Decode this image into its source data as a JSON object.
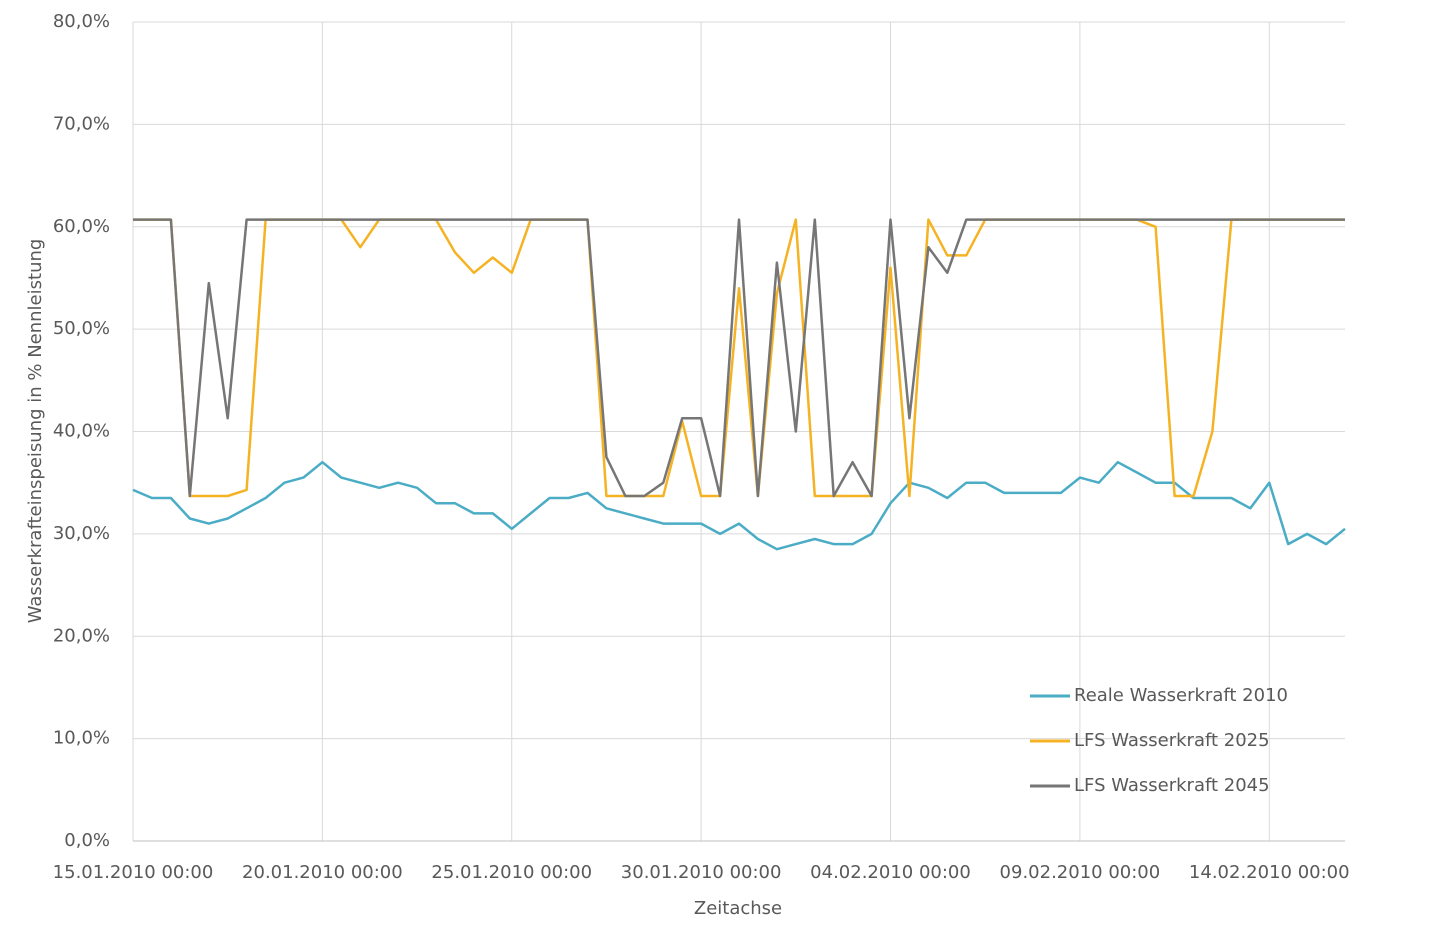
{
  "chart_data": {
    "type": "line",
    "x_label": "Zeitachse",
    "y_label": "Wasserkrafteinspeisung in % Nennleistung",
    "x": [
      "15.01.2010 00:00",
      "15.01.2010 12:00",
      "16.01.2010 00:00",
      "16.01.2010 12:00",
      "17.01.2010 00:00",
      "17.01.2010 12:00",
      "18.01.2010 00:00",
      "18.01.2010 12:00",
      "19.01.2010 00:00",
      "19.01.2010 12:00",
      "20.01.2010 00:00",
      "20.01.2010 12:00",
      "21.01.2010 00:00",
      "21.01.2010 12:00",
      "22.01.2010 00:00",
      "22.01.2010 12:00",
      "23.01.2010 00:00",
      "23.01.2010 12:00",
      "24.01.2010 00:00",
      "24.01.2010 12:00",
      "25.01.2010 00:00",
      "25.01.2010 12:00",
      "26.01.2010 00:00",
      "26.01.2010 12:00",
      "27.01.2010 00:00",
      "27.01.2010 12:00",
      "28.01.2010 00:00",
      "28.01.2010 12:00",
      "29.01.2010 00:00",
      "29.01.2010 12:00",
      "30.01.2010 00:00",
      "30.01.2010 12:00",
      "31.01.2010 00:00",
      "31.01.2010 12:00",
      "01.02.2010 00:00",
      "01.02.2010 12:00",
      "02.02.2010 00:00",
      "02.02.2010 12:00",
      "03.02.2010 00:00",
      "03.02.2010 12:00",
      "04.02.2010 00:00",
      "04.02.2010 12:00",
      "05.02.2010 00:00",
      "05.02.2010 12:00",
      "06.02.2010 00:00",
      "06.02.2010 12:00",
      "07.02.2010 00:00",
      "07.02.2010 12:00",
      "08.02.2010 00:00",
      "08.02.2010 12:00",
      "09.02.2010 00:00",
      "09.02.2010 12:00",
      "10.02.2010 00:00",
      "10.02.2010 12:00",
      "11.02.2010 00:00",
      "11.02.2010 12:00",
      "12.02.2010 00:00",
      "12.02.2010 12:00",
      "13.02.2010 00:00",
      "13.02.2010 12:00",
      "14.02.2010 00:00",
      "14.02.2010 12:00",
      "15.02.2010 00:00",
      "15.02.2010 12:00",
      "16.02.2010 00:00"
    ],
    "series": [
      {
        "name": "Reale Wasserkraft 2010",
        "color": "#4bacc6",
        "values": [
          34.3,
          33.5,
          33.5,
          31.5,
          31,
          31.5,
          32.5,
          33.5,
          35,
          35.5,
          37,
          35.5,
          35,
          34.5,
          35,
          34.5,
          33,
          33,
          32,
          32,
          30.5,
          32,
          33.5,
          33.5,
          34,
          32.5,
          32,
          31.5,
          31,
          31,
          31,
          30,
          31,
          29.5,
          28.5,
          29,
          29.5,
          29,
          29,
          30,
          33,
          35,
          34.5,
          33.5,
          35,
          35,
          34,
          34,
          34,
          34,
          35.5,
          35,
          37,
          36,
          35,
          35,
          33.5,
          33.5,
          33.5,
          32.5,
          35,
          29,
          30,
          29,
          30.5
        ]
      },
      {
        "name": "LFS Wasserkraft 2025",
        "color": "#f5b324",
        "values": [
          60.7,
          60.7,
          60.7,
          33.7,
          33.7,
          33.7,
          34.3,
          60.7,
          60.7,
          60.7,
          60.7,
          60.7,
          58,
          60.7,
          60.7,
          60.7,
          60.7,
          57.5,
          55.5,
          57,
          55.5,
          60.7,
          60.7,
          60.7,
          60.7,
          33.7,
          33.7,
          33.7,
          33.7,
          41,
          33.7,
          33.7,
          54,
          33.7,
          53.5,
          60.7,
          33.7,
          33.7,
          33.7,
          33.7,
          56,
          33.7,
          60.7,
          57.2,
          57.2,
          60.7,
          60.7,
          60.7,
          60.7,
          60.7,
          60.7,
          60.7,
          60.7,
          60.7,
          60,
          33.7,
          33.7,
          40,
          60.7,
          60.7,
          60.7,
          60.7,
          60.7,
          60.7,
          60.7
        ]
      },
      {
        "name": "LFS Wasserkraft 2045",
        "color": "#767676",
        "values": [
          60.7,
          60.7,
          60.7,
          33.7,
          54.5,
          41.3,
          60.7,
          60.7,
          60.7,
          60.7,
          60.7,
          60.7,
          60.7,
          60.7,
          60.7,
          60.7,
          60.7,
          60.7,
          60.7,
          60.7,
          60.7,
          60.7,
          60.7,
          60.7,
          60.7,
          37.5,
          33.7,
          33.7,
          35,
          41.3,
          41.3,
          33.7,
          60.7,
          33.7,
          56.5,
          40,
          60.7,
          33.7,
          37,
          33.7,
          60.7,
          41.3,
          58,
          55.5,
          60.7,
          60.7,
          60.7,
          60.7,
          60.7,
          60.7,
          60.7,
          60.7,
          60.7,
          60.7,
          60.7,
          60.7,
          60.7,
          60.7,
          60.7,
          60.7,
          60.7,
          60.7,
          60.7,
          60.7,
          60.7
        ]
      }
    ],
    "xlim": [
      "15.01.2010 00:00",
      "16.02.2010 00:00"
    ],
    "xticks": [
      "15.01.2010 00:00",
      "20.01.2010 00:00",
      "25.01.2010 00:00",
      "30.01.2010 00:00",
      "04.02.2010 00:00",
      "09.02.2010 00:00",
      "14.02.2010 00:00"
    ],
    "ylim": [
      0,
      80
    ],
    "yticks": [
      {
        "value": 0,
        "label": "0,0%"
      },
      {
        "value": 10,
        "label": "10,0%"
      },
      {
        "value": 20,
        "label": "20,0%"
      },
      {
        "value": 30,
        "label": "30,0%"
      },
      {
        "value": 40,
        "label": "40,0%"
      },
      {
        "value": 50,
        "label": "50,0%"
      },
      {
        "value": 60,
        "label": "60,0%"
      },
      {
        "value": 70,
        "label": "70,0%"
      },
      {
        "value": 80,
        "label": "80,0%"
      }
    ],
    "grid": true,
    "legend": "lower right"
  }
}
